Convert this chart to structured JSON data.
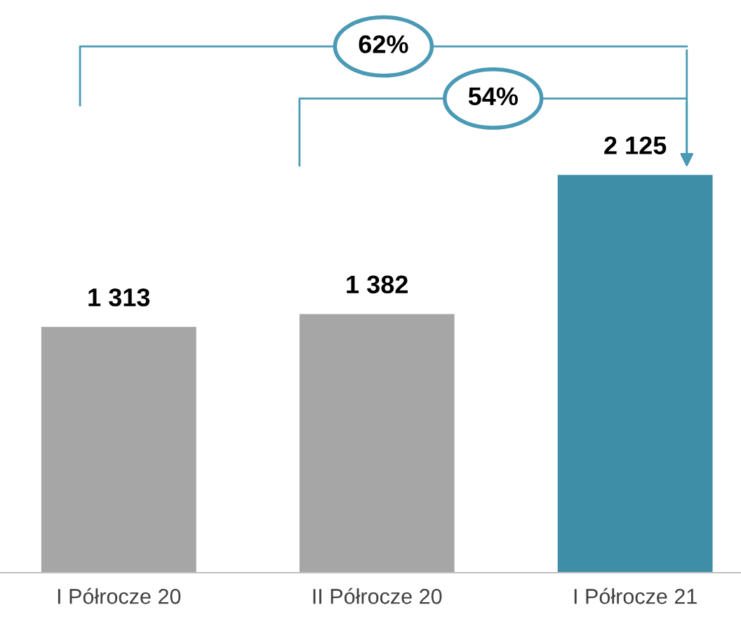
{
  "chart_data": {
    "type": "bar",
    "categories": [
      "I Półrocze 20",
      "II Półrocze 20",
      "I Półrocze 21"
    ],
    "values": [
      1313,
      1382,
      2125
    ],
    "value_labels": [
      "1 313",
      "1 382",
      "2 125"
    ],
    "colors": [
      "#a6a6a6",
      "#a6a6a6",
      "#3f8ea8"
    ],
    "annotations": [
      "62%",
      "54%"
    ],
    "grid": false,
    "legend": false
  }
}
